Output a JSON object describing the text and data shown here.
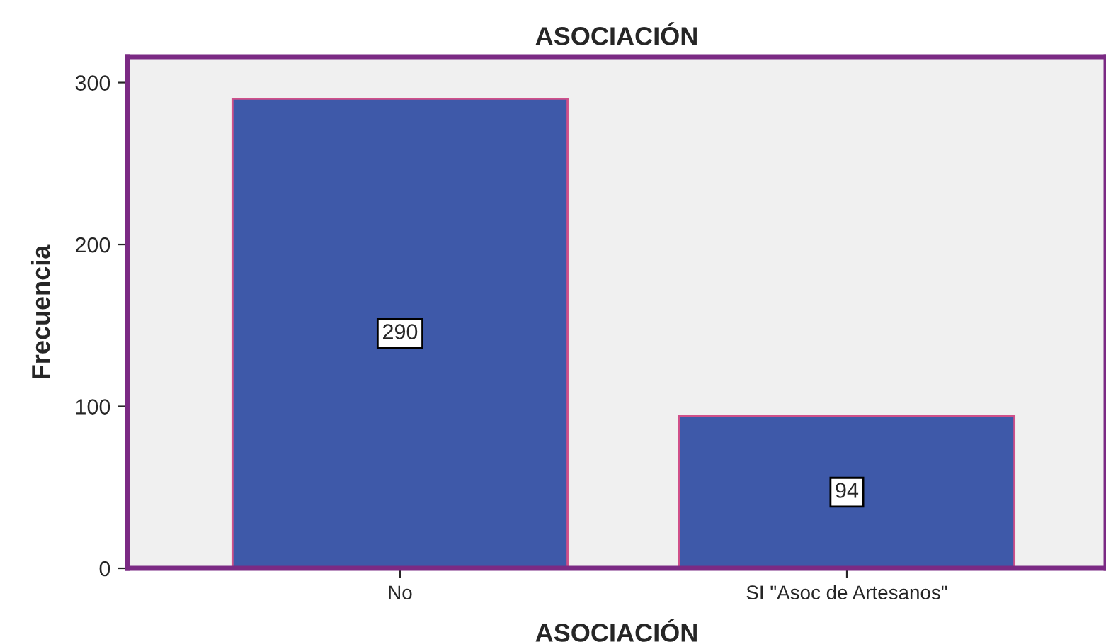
{
  "chart_data": {
    "type": "bar",
    "title": "ASOCIACIÓN",
    "xlabel": "ASOCIACIÓN",
    "ylabel": "Frecuencia",
    "categories": [
      "No",
      "SI \"Asoc de Artesanos\""
    ],
    "values": [
      290,
      94
    ],
    "color": "#3e59a9",
    "ylim": [
      0,
      316
    ],
    "yticks": [
      0,
      100,
      200,
      300
    ],
    "grid": false,
    "data_labels": true
  }
}
